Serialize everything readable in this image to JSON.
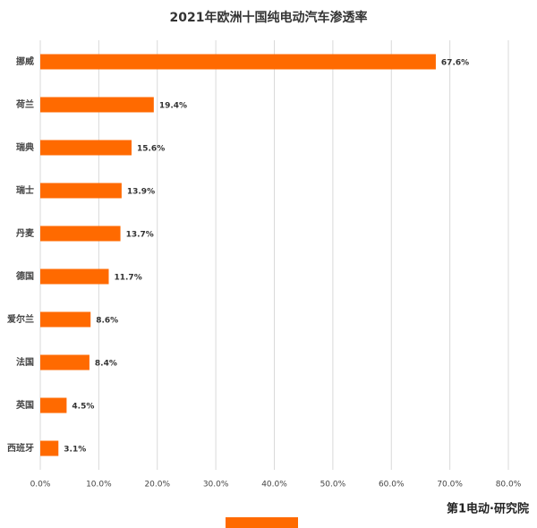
{
  "chart_data": {
    "type": "hbar",
    "title": "2021年欧洲十国纯电动汽车渗透率",
    "categories": [
      "挪威",
      "荷兰",
      "瑞典",
      "瑞士",
      "丹麦",
      "德国",
      "爱尔兰",
      "法国",
      "英国",
      "西班牙"
    ],
    "values": [
      67.6,
      19.4,
      15.6,
      13.9,
      13.7,
      11.7,
      8.6,
      8.4,
      4.5,
      3.1
    ],
    "value_labels": [
      "67.6%",
      "19.4%",
      "15.6%",
      "13.9%",
      "13.7%",
      "11.7%",
      "8.6%",
      "8.4%",
      "4.5%",
      "3.1%"
    ],
    "color": "#ff6a00",
    "xlim": [
      0,
      80
    ],
    "xticks": [
      {
        "value": 0,
        "label": "0.0%"
      },
      {
        "value": 10,
        "label": "10.0%"
      },
      {
        "value": 20,
        "label": "20.0%"
      },
      {
        "value": 30,
        "label": "30.0%"
      },
      {
        "value": 40,
        "label": "40.0%"
      },
      {
        "value": 50,
        "label": "50.0%"
      },
      {
        "value": 60,
        "label": "60.0%"
      },
      {
        "value": 70,
        "label": "70.0%"
      },
      {
        "value": 80,
        "label": "80.0%"
      }
    ],
    "grid": true,
    "legend": "bottom",
    "source": "第1电动·研究院"
  }
}
